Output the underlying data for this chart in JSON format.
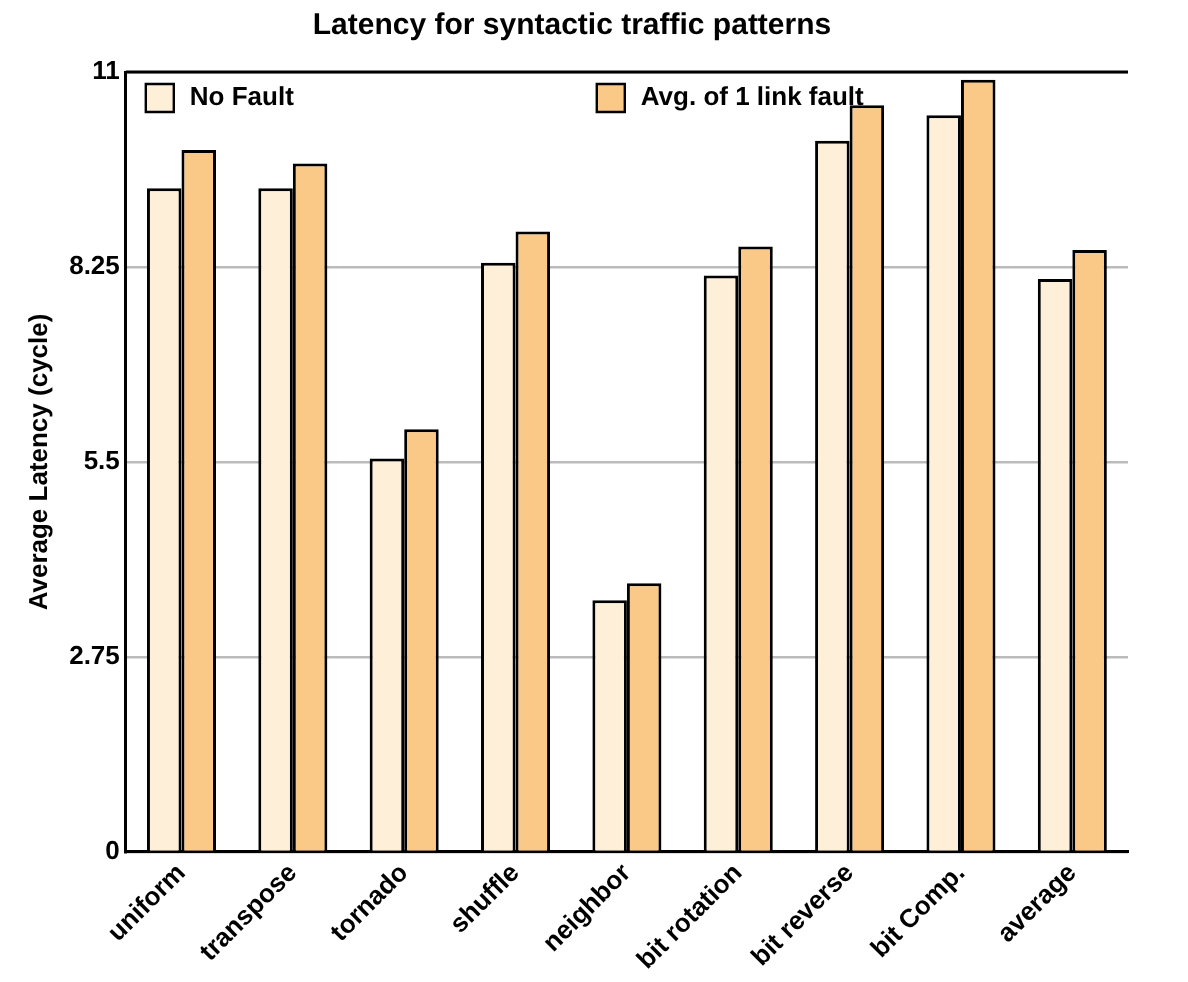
{
  "chart_data": {
    "type": "bar",
    "title": "Latency for syntactic traffic patterns",
    "ylabel": "Average Latency (cycle)",
    "categories": [
      "uniform",
      "transpose",
      "tornado",
      "shuffle",
      "neighbor",
      "bit rotation",
      "bit reverse",
      "bit Comp.",
      "average"
    ],
    "series": [
      {
        "name": "No Fault",
        "color": "#fdefd8",
        "values": [
          9.36,
          9.36,
          5.55,
          8.31,
          3.55,
          8.13,
          10.03,
          10.39,
          8.08
        ]
      },
      {
        "name": "Avg. of 1 link fault",
        "color": "#fbc987",
        "values": [
          9.9,
          9.71,
          5.96,
          8.75,
          3.79,
          8.54,
          10.53,
          10.89,
          8.49
        ]
      }
    ],
    "ylim": [
      0,
      11
    ],
    "yticks": [
      0,
      2.75,
      5.5,
      8.25,
      11
    ],
    "grid": "y",
    "legend": "top"
  }
}
